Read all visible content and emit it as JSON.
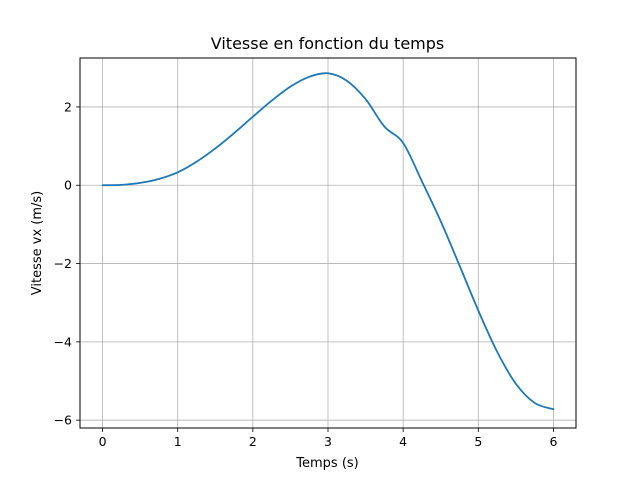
{
  "chart_data": {
    "type": "line",
    "title": "Vitesse en fonction du temps",
    "xlabel": "Temps (s)",
    "ylabel": "Vitesse vx (m/s)",
    "xlim": [
      -0.3,
      6.3
    ],
    "ylim": [
      -6.2,
      3.25
    ],
    "xticks": [
      0,
      1,
      2,
      3,
      4,
      5,
      6
    ],
    "xtick_labels": [
      "0",
      "1",
      "2",
      "3",
      "4",
      "5",
      "6"
    ],
    "yticks": [
      -6,
      -4,
      -2,
      0,
      2
    ],
    "ytick_labels": [
      "−6",
      "−4",
      "−2",
      "0",
      "2"
    ],
    "grid": true,
    "series": [
      {
        "color": "#1f77b4",
        "x": [
          0,
          0.25,
          0.5,
          0.75,
          1.0,
          1.25,
          1.5,
          1.75,
          2.0,
          2.25,
          2.5,
          2.75,
          3.0,
          3.25,
          3.5,
          3.75,
          4.0,
          4.25,
          4.5,
          4.75,
          5.0,
          5.25,
          5.5,
          5.75,
          6.0
        ],
        "y": [
          0,
          0.01,
          0.06,
          0.16,
          0.33,
          0.6,
          0.94,
          1.33,
          1.75,
          2.16,
          2.52,
          2.77,
          2.86,
          2.67,
          2.2,
          1.5,
          1.08,
          0.1,
          -0.92,
          -2.05,
          -3.2,
          -4.25,
          -5.07,
          -5.56,
          -5.72
        ]
      }
    ]
  }
}
